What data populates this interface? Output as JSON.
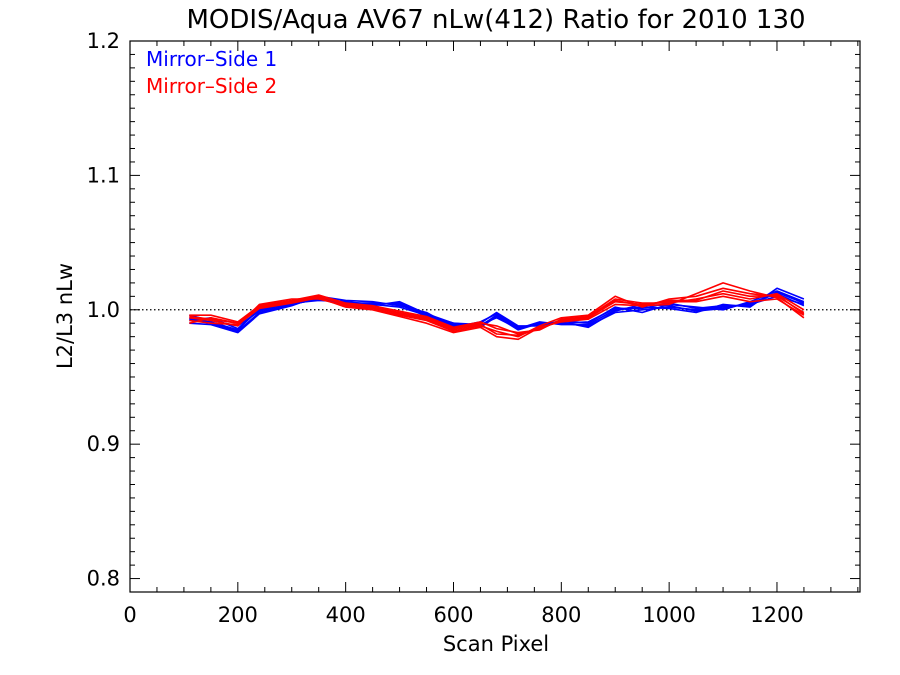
{
  "chart_data": {
    "type": "line",
    "title": "MODIS/Aqua AV67 nLw(412) Ratio for 2010 130",
    "xlabel": "Scan Pixel",
    "ylabel": "L2/L3 nLw",
    "xlim": [
      0,
      1354
    ],
    "ylim": [
      0.79,
      1.2
    ],
    "xticks": [
      0,
      200,
      400,
      600,
      800,
      1000,
      1200
    ],
    "xtick_labels": [
      "0",
      "200",
      "400",
      "600",
      "800",
      "1000",
      "1200"
    ],
    "yticks": [
      0.8,
      0.9,
      1.0,
      1.1,
      1.2
    ],
    "ytick_labels": [
      "0.8",
      "0.9",
      "1.0",
      "1.1",
      "1.2"
    ],
    "reference_line": 1.0,
    "legend": {
      "placement": "top-left",
      "entries": [
        {
          "label": "Mirror–Side 1",
          "color": "#0000ff"
        },
        {
          "label": "Mirror–Side 2",
          "color": "#ff0000"
        }
      ]
    },
    "x": [
      110,
      150,
      200,
      240,
      300,
      350,
      400,
      450,
      500,
      550,
      600,
      650,
      680,
      720,
      760,
      800,
      850,
      900,
      950,
      1000,
      1050,
      1100,
      1150,
      1200,
      1250
    ],
    "series": [
      {
        "group": "Mirror-Side 1",
        "color": "#0000ff",
        "values": [
          0.994,
          0.99,
          0.984,
          0.998,
          1.004,
          1.008,
          1.006,
          1.004,
          1.002,
          0.996,
          0.99,
          0.988,
          0.996,
          0.986,
          0.99,
          0.99,
          0.988,
          0.998,
          1.0,
          1.002,
          1.0,
          1.002,
          1.004,
          1.01,
          1.004
        ]
      },
      {
        "group": "Mirror-Side 1",
        "color": "#0000ff",
        "values": [
          0.992,
          0.994,
          0.986,
          1.0,
          1.006,
          1.009,
          1.005,
          1.005,
          1.004,
          0.995,
          0.988,
          0.99,
          0.998,
          0.988,
          0.988,
          0.992,
          0.99,
          1.002,
          0.998,
          1.004,
          1.002,
          1.0,
          1.006,
          1.014,
          1.006
        ]
      },
      {
        "group": "Mirror-Side 1",
        "color": "#0000ff",
        "values": [
          0.996,
          0.992,
          0.988,
          0.999,
          1.005,
          1.007,
          1.006,
          1.003,
          1.006,
          0.997,
          0.99,
          0.989,
          0.994,
          0.986,
          0.991,
          0.989,
          0.989,
          1.0,
          1.002,
          1.001,
          0.998,
          1.004,
          1.002,
          1.016,
          1.008
        ]
      },
      {
        "group": "Mirror-Side 1",
        "color": "#0000ff",
        "values": [
          0.99,
          0.989,
          0.983,
          0.997,
          1.003,
          1.01,
          1.007,
          1.006,
          1.003,
          0.998,
          0.987,
          0.991,
          0.997,
          0.987,
          0.989,
          0.991,
          0.987,
          0.999,
          1.004,
          1.003,
          0.999,
          1.001,
          1.005,
          1.012,
          1.003
        ]
      },
      {
        "group": "Mirror-Side 1",
        "color": "#0000ff",
        "values": [
          0.993,
          0.991,
          0.985,
          1.001,
          1.004,
          1.008,
          1.004,
          1.004,
          1.005,
          0.996,
          0.989,
          0.987,
          0.995,
          0.985,
          0.99,
          0.99,
          0.991,
          1.001,
          1.001,
          1.005,
          1.001,
          1.003,
          1.003,
          1.013,
          1.005
        ]
      },
      {
        "group": "Mirror-Side 2",
        "color": "#ff0000",
        "values": [
          0.99,
          0.994,
          0.99,
          1.002,
          1.006,
          1.01,
          1.004,
          1.002,
          0.998,
          0.994,
          0.986,
          0.99,
          0.988,
          0.982,
          0.986,
          0.992,
          0.994,
          1.006,
          1.004,
          1.006,
          1.006,
          1.01,
          1.006,
          1.008,
          0.996
        ]
      },
      {
        "group": "Mirror-Side 2",
        "color": "#ff0000",
        "values": [
          0.994,
          0.992,
          0.988,
          1.004,
          1.008,
          1.008,
          1.003,
          1.001,
          0.996,
          0.992,
          0.984,
          0.988,
          0.984,
          0.98,
          0.988,
          0.994,
          0.996,
          1.01,
          1.002,
          1.008,
          1.01,
          1.016,
          1.012,
          1.01,
          0.998
        ]
      },
      {
        "group": "Mirror-Side 2",
        "color": "#ff0000",
        "values": [
          0.996,
          0.996,
          0.991,
          1.003,
          1.007,
          1.011,
          1.005,
          1.003,
          0.999,
          0.995,
          0.987,
          0.991,
          0.986,
          0.983,
          0.985,
          0.993,
          0.995,
          1.008,
          1.005,
          1.005,
          1.008,
          1.012,
          1.008,
          1.012,
          1.0
        ]
      },
      {
        "group": "Mirror-Side 2",
        "color": "#ff0000",
        "values": [
          0.992,
          0.99,
          0.989,
          1.001,
          1.005,
          1.009,
          1.002,
          1.0,
          0.995,
          0.99,
          0.983,
          0.987,
          0.98,
          0.978,
          0.987,
          0.991,
          0.993,
          1.004,
          1.003,
          1.004,
          1.012,
          1.02,
          1.014,
          1.009,
          0.994
        ]
      },
      {
        "group": "Mirror-Side 2",
        "color": "#ff0000",
        "values": [
          0.995,
          0.993,
          0.99,
          1.002,
          1.006,
          1.01,
          1.004,
          1.002,
          0.997,
          0.993,
          0.985,
          0.989,
          0.982,
          0.981,
          0.986,
          0.992,
          0.994,
          1.007,
          1.003,
          1.007,
          1.007,
          1.014,
          1.01,
          1.011,
          0.997
        ]
      }
    ]
  }
}
